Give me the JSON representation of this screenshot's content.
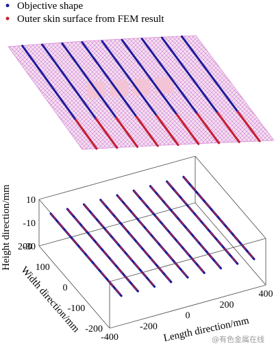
{
  "legend": [
    {
      "label": "Objective shape",
      "color": "#1c1c9a"
    },
    {
      "label": "Outer skin surface from FEM result",
      "color": "#cc1f2f"
    }
  ],
  "watermark": "@有色金属在线",
  "chart_data": {
    "type": "3d-line",
    "series": [
      {
        "name": "Objective shape",
        "color": "#1c1c9a"
      },
      {
        "name": "Outer skin surface from FEM result",
        "color": "#cc1f2f"
      }
    ],
    "xlabel": "Length direction/mm",
    "ylabel": "Width direction/mm",
    "zlabel": "Height direction/mm",
    "xlim": [
      -400,
      400
    ],
    "ylim": [
      -200,
      200
    ],
    "zlim": [
      -30,
      10
    ],
    "x_ticks": [
      "-400",
      "-200",
      "0",
      "200",
      "400"
    ],
    "y_ticks": [
      "-200",
      "-100",
      "0",
      "100",
      "200"
    ],
    "z_ticks": [
      "10",
      "-10",
      "-30"
    ],
    "stringer_x": [
      -340,
      -255,
      -170,
      -85,
      0,
      85,
      170,
      255,
      340
    ],
    "stringer_width_range": [
      -200,
      200
    ],
    "stringer_height": -5,
    "surface_colors": {
      "mesh": "#d98ad6",
      "patch": "#f2c4d6"
    }
  }
}
